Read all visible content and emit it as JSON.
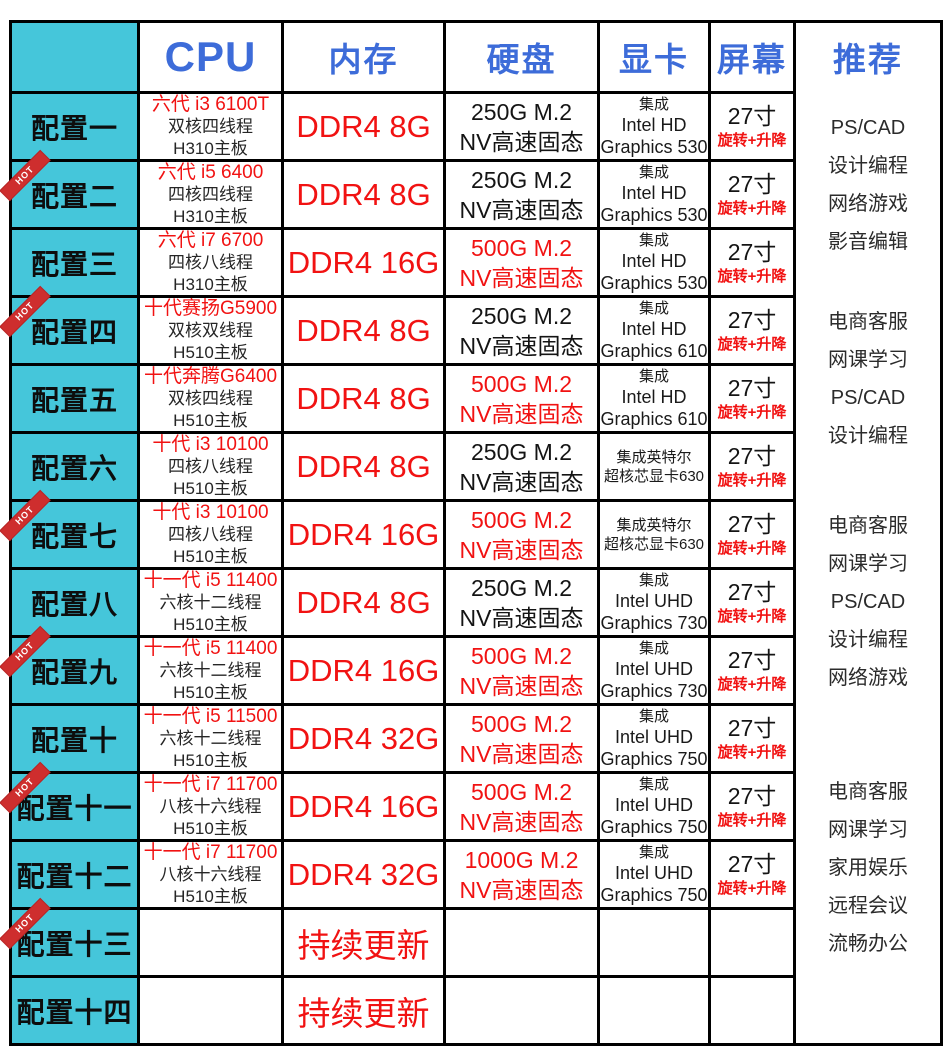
{
  "chart_data": {
    "type": "table",
    "columns": [
      "",
      "CPU",
      "内存",
      "硬盘",
      "显卡",
      "屏幕",
      "推荐"
    ],
    "hot_label": "HOT",
    "rows": [
      {
        "label": "配置一",
        "hot": false,
        "cpu": [
          "六代 i3 6100T",
          "双核四线程",
          "H310主板"
        ],
        "memory": "DDR4 8G",
        "disk": [
          "250G M.2",
          "NV高速固态"
        ],
        "disk_red": false,
        "gpu": [
          "集成",
          "Intel HD",
          "Graphics 530"
        ],
        "screen": {
          "size": "27寸",
          "feature": "旋转+升降"
        }
      },
      {
        "label": "配置二",
        "hot": true,
        "cpu": [
          "六代 i5 6400",
          "四核四线程",
          "H310主板"
        ],
        "memory": "DDR4 8G",
        "disk": [
          "250G M.2",
          "NV高速固态"
        ],
        "disk_red": false,
        "gpu": [
          "集成",
          "Intel HD",
          "Graphics 530"
        ],
        "screen": {
          "size": "27寸",
          "feature": "旋转+升降"
        }
      },
      {
        "label": "配置三",
        "hot": false,
        "cpu": [
          "六代 i7 6700",
          "四核八线程",
          "H310主板"
        ],
        "memory": "DDR4 16G",
        "disk": [
          "500G M.2",
          "NV高速固态"
        ],
        "disk_red": true,
        "gpu": [
          "集成",
          "Intel HD",
          "Graphics 530"
        ],
        "screen": {
          "size": "27寸",
          "feature": "旋转+升降"
        }
      },
      {
        "label": "配置四",
        "hot": true,
        "cpu": [
          "十代赛扬G5900",
          "双核双线程",
          "H510主板"
        ],
        "memory": "DDR4 8G",
        "disk": [
          "250G M.2",
          "NV高速固态"
        ],
        "disk_red": false,
        "gpu": [
          "集成",
          "Intel HD",
          "Graphics 610"
        ],
        "screen": {
          "size": "27寸",
          "feature": "旋转+升降"
        }
      },
      {
        "label": "配置五",
        "hot": false,
        "cpu": [
          "十代奔腾G6400",
          "双核四线程",
          "H510主板"
        ],
        "memory": "DDR4 8G",
        "disk": [
          "500G M.2",
          "NV高速固态"
        ],
        "disk_red": true,
        "gpu": [
          "集成",
          "Intel HD",
          "Graphics 610"
        ],
        "screen": {
          "size": "27寸",
          "feature": "旋转+升降"
        }
      },
      {
        "label": "配置六",
        "hot": false,
        "cpu": [
          "十代 i3 10100",
          "四核八线程",
          "H510主板"
        ],
        "memory": "DDR4 8G",
        "disk": [
          "250G M.2",
          "NV高速固态"
        ],
        "disk_red": false,
        "gpu": [
          "集成英特尔",
          "超核芯显卡630"
        ],
        "screen": {
          "size": "27寸",
          "feature": "旋转+升降"
        }
      },
      {
        "label": "配置七",
        "hot": true,
        "cpu": [
          "十代 i3 10100",
          "四核八线程",
          "H510主板"
        ],
        "memory": "DDR4 16G",
        "disk": [
          "500G M.2",
          "NV高速固态"
        ],
        "disk_red": true,
        "gpu": [
          "集成英特尔",
          "超核芯显卡630"
        ],
        "screen": {
          "size": "27寸",
          "feature": "旋转+升降"
        }
      },
      {
        "label": "配置八",
        "hot": false,
        "cpu": [
          "十一代 i5 11400",
          "六核十二线程",
          "H510主板"
        ],
        "memory": "DDR4 8G",
        "disk": [
          "250G M.2",
          "NV高速固态"
        ],
        "disk_red": false,
        "gpu": [
          "集成",
          "Intel UHD",
          "Graphics 730"
        ],
        "screen": {
          "size": "27寸",
          "feature": "旋转+升降"
        }
      },
      {
        "label": "配置九",
        "hot": true,
        "cpu": [
          "十一代 i5 11400",
          "六核十二线程",
          "H510主板"
        ],
        "memory": "DDR4 16G",
        "disk": [
          "500G M.2",
          "NV高速固态"
        ],
        "disk_red": true,
        "gpu": [
          "集成",
          "Intel UHD",
          "Graphics 730"
        ],
        "screen": {
          "size": "27寸",
          "feature": "旋转+升降"
        }
      },
      {
        "label": "配置十",
        "hot": false,
        "cpu": [
          "十一代 i5 11500",
          "六核十二线程",
          "H510主板"
        ],
        "memory": "DDR4 32G",
        "disk": [
          "500G M.2",
          "NV高速固态"
        ],
        "disk_red": true,
        "gpu": [
          "集成",
          "Intel UHD",
          "Graphics 750"
        ],
        "screen": {
          "size": "27寸",
          "feature": "旋转+升降"
        }
      },
      {
        "label": "配置十一",
        "hot": true,
        "cpu": [
          "十一代 i7 11700",
          "八核十六线程",
          "H510主板"
        ],
        "memory": "DDR4 16G",
        "disk": [
          "500G M.2",
          "NV高速固态"
        ],
        "disk_red": true,
        "gpu": [
          "集成",
          "Intel UHD",
          "Graphics 750"
        ],
        "screen": {
          "size": "27寸",
          "feature": "旋转+升降"
        }
      },
      {
        "label": "配置十二",
        "hot": false,
        "cpu": [
          "十一代 i7 11700",
          "八核十六线程",
          "H510主板"
        ],
        "memory": "DDR4 32G",
        "disk": [
          "1000G M.2",
          "NV高速固态"
        ],
        "disk_red": true,
        "gpu": [
          "集成",
          "Intel UHD",
          "Graphics 750"
        ],
        "screen": {
          "size": "27寸",
          "feature": "旋转+升降"
        }
      },
      {
        "label": "配置十三",
        "hot": true,
        "update": true,
        "cpu": [],
        "memory": "持续更新",
        "disk": [],
        "disk_red": false,
        "gpu": [],
        "screen": null
      },
      {
        "label": "配置十四",
        "hot": false,
        "update": true,
        "cpu": [],
        "memory": "持续更新",
        "disk": [],
        "disk_red": false,
        "gpu": [],
        "screen": null
      }
    ],
    "recommend_groups": [
      {
        "rows": "配置一-配置三",
        "items": [
          "PS/CAD",
          "设计编程",
          "网络游戏",
          "影音编辑"
        ]
      },
      {
        "rows": "配置四-配置六",
        "items": [
          "电商客服",
          "网课学习",
          "PS/CAD",
          "设计编程"
        ]
      },
      {
        "rows": "配置七-配置十",
        "items": [
          "电商客服",
          "网课学习",
          "PS/CAD",
          "设计编程",
          "网络游戏"
        ]
      },
      {
        "rows": "配置十一-配置十四",
        "items": [
          "电商客服",
          "网课学习",
          "家用娱乐",
          "远程会议",
          "流畅办公"
        ]
      }
    ],
    "layout_hints": {
      "grid": true,
      "label_column_merged": false,
      "recommend_column_merged": true
    }
  },
  "colors": {
    "label_column_bg": "#45c6da",
    "header_text": "#3d6cd9",
    "highlight_red": "#f11212",
    "hot_badge_bg": "#ce2e2e",
    "border": "#000000",
    "background": "#ffffff"
  }
}
